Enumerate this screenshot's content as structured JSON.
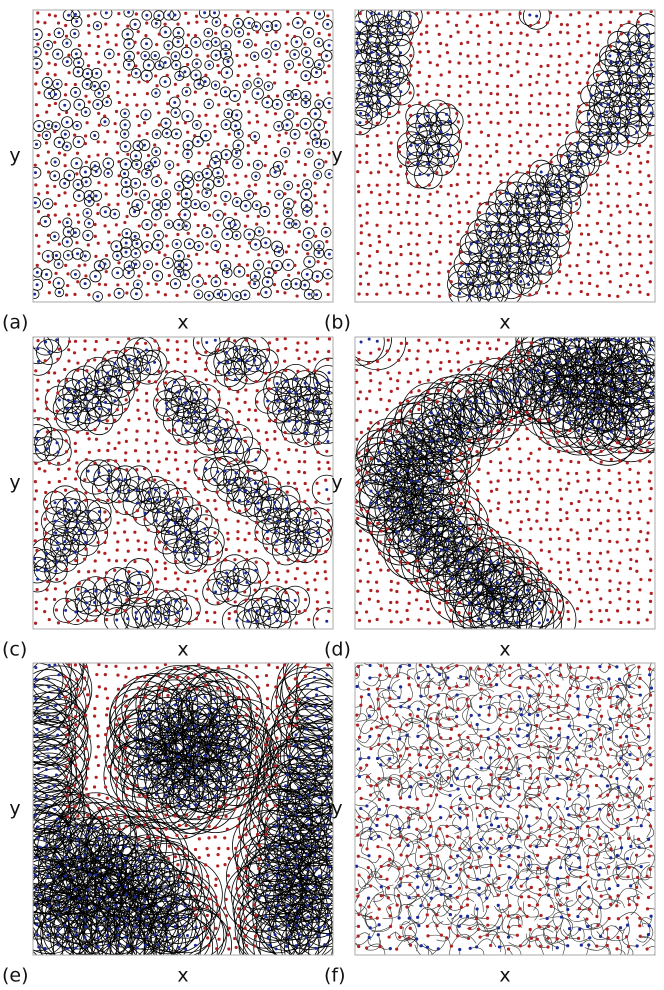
{
  "panels": [
    {
      "label": "(a)",
      "x_label": "x",
      "y_label": "y"
    },
    {
      "label": "(b)",
      "x_label": "x",
      "y_label": "y"
    },
    {
      "label": "(c)",
      "x_label": "x",
      "y_label": "y"
    },
    {
      "label": "(d)",
      "x_label": "x",
      "y_label": "y"
    },
    {
      "label": "(e)",
      "x_label": "x",
      "y_label": "y"
    },
    {
      "label": "(f)",
      "x_label": "x",
      "y_label": "y"
    }
  ]
}
